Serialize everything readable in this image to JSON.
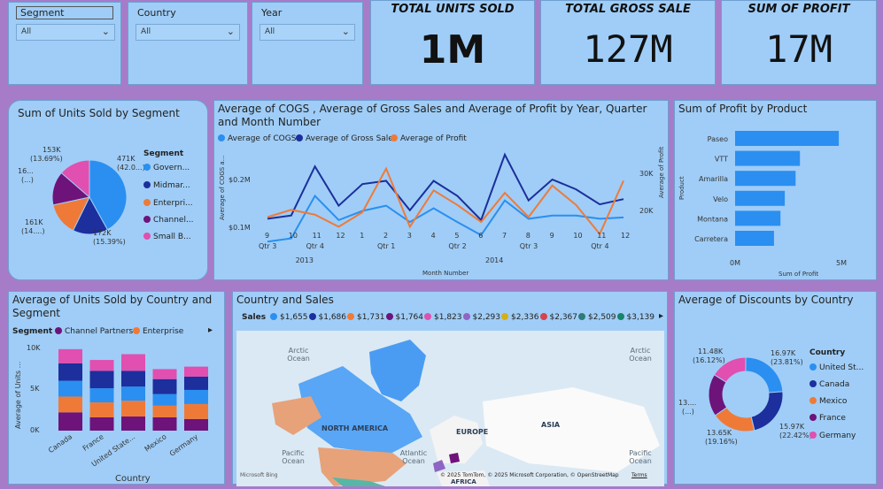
{
  "slicers": [
    {
      "label": "Segment",
      "value": "All"
    },
    {
      "label": "Country",
      "value": "All"
    },
    {
      "label": "Year",
      "value": "All"
    }
  ],
  "kpis": [
    {
      "title": "TOTAL UNITS SOLD",
      "value": "1M"
    },
    {
      "title": "TOTAL GROSS SALE",
      "value": "127M"
    },
    {
      "title": "SUM OF PROFIT",
      "value": "17M"
    }
  ],
  "colors": {
    "blue": "#2a8ff0",
    "navy": "#1c2f9c",
    "orange": "#ef7a38",
    "purple": "#6d137a",
    "pink": "#e14fb0",
    "mauve": "#a67cc9"
  },
  "pie_segment": {
    "title": "Sum of Units Sold by Segment",
    "legend_title": "Segment",
    "legend": [
      "Govern...",
      "Midmar...",
      "Enterpri...",
      "Channel...",
      "Small B..."
    ],
    "labels": [
      {
        "v": "471K",
        "p": "(42.0...)"
      },
      {
        "v": "172K",
        "p": "(15.39%)"
      },
      {
        "v": "161K",
        "p": "(14....)"
      },
      {
        "v": "16...",
        "p": "(...)"
      },
      {
        "v": "153K",
        "p": "(13.69%)"
      }
    ]
  },
  "line_chart": {
    "title": "Average of COGS , Average of Gross Sales and Average of Profit by Year, Quarter and Month Number",
    "legend": [
      "Average of COGS",
      "Average of Gross Sales",
      "Average of Profit"
    ],
    "y_left_label": "Average of COGS a...",
    "y_right_label": "Average of Profit",
    "y_left_ticks": [
      "$0.2M",
      "$0.1M"
    ],
    "y_right_ticks": [
      "30K",
      "20K"
    ],
    "months": [
      "9",
      "10",
      "11",
      "12",
      "1",
      "2",
      "3",
      "4",
      "5",
      "6",
      "7",
      "8",
      "9",
      "10",
      "11",
      "12"
    ],
    "quarters": [
      "Qtr 3",
      "Qtr 4",
      "Qtr 1",
      "Qtr 2",
      "Qtr 3",
      "Qtr 4"
    ],
    "years": [
      "2013",
      "2014"
    ],
    "xlabel": "Month Number"
  },
  "bar_product": {
    "title": "Sum of Profit by Product",
    "ylabel": "Product",
    "xlabel": "Sum of Profit",
    "xticks": [
      "0M",
      "5M"
    ],
    "categories": [
      "Paseo",
      "VTT",
      "Amarilla",
      "Velo",
      "Montana",
      "Carretera"
    ]
  },
  "stacked_country": {
    "title": "Average of Units Sold by Country and Segment",
    "legend_title": "Segment",
    "legend": [
      "Channel Partners",
      "Enterprise"
    ],
    "ylabel": "Average of Units ...",
    "yticks": [
      "10K",
      "5K",
      "0K"
    ],
    "categories": [
      "Canada",
      "France",
      "United States of America",
      "Mexico",
      "Germany"
    ],
    "cat_labels": [
      "Canada",
      "France",
      "United State...",
      "Mexico",
      "Germany"
    ],
    "xlabel": "Country"
  },
  "map": {
    "title": "Country and Sales",
    "legend_title": "Sales",
    "legend": [
      "$1,655",
      "$1,686",
      "$1,731",
      "$1,764",
      "$1,823",
      "$2,293",
      "$2,336",
      "$2,367",
      "$2,509",
      "$3,139"
    ],
    "labels": {
      "arctic1": "Arctic Ocean",
      "arctic2": "Arctic Ocean",
      "pacific1": "Pacific Ocean",
      "pacific2": "Pacific Ocean",
      "atlantic": "Atlantic Ocean",
      "na": "NORTH AMERICA",
      "eu": "EUROPE",
      "asia": "ASIA",
      "africa": "AFRICA"
    },
    "attribution": "© 2025 TomTom, © 2025 Microsoft Corporation, © OpenStreetMap",
    "terms": "Terms",
    "bing": "Microsoft Bing"
  },
  "donut": {
    "title": "Average of Discounts by Country",
    "legend_title": "Country",
    "legend": [
      "United St...",
      "Canada",
      "Mexico",
      "France",
      "Germany"
    ],
    "labels": [
      {
        "v": "16.97K",
        "p": "(23.81%)"
      },
      {
        "v": "15.97K",
        "p": "(22.42%)"
      },
      {
        "v": "13.65K",
        "p": "(19.16%)"
      },
      {
        "v": "13....",
        "p": "(...)"
      },
      {
        "v": "11.48K",
        "p": "(16.12%)"
      }
    ]
  },
  "chart_data": [
    {
      "type": "pie",
      "title": "Sum of Units Sold by Segment",
      "categories": [
        "Government",
        "Midmarket",
        "Enterprise",
        "Channel Partners",
        "Small Business"
      ],
      "values": [
        471,
        172,
        161,
        166,
        153
      ],
      "unit": "K"
    },
    {
      "type": "line",
      "title": "Average of COGS , Average of Gross Sales and Average of Profit by Year, Quarter and Month Number",
      "x": [
        "2013 Qtr3 9",
        "10",
        "11",
        "12",
        "2014 Qtr1 1",
        "2",
        "3",
        "4",
        "5",
        "6",
        "7",
        "8",
        "9",
        "10",
        "11",
        "12"
      ],
      "series": [
        {
          "name": "Average of COGS",
          "axis": "left",
          "values": [
            0.105,
            0.11,
            0.175,
            0.138,
            0.152,
            0.16,
            0.135,
            0.156,
            0.135,
            0.115,
            0.168,
            0.14,
            0.145,
            0.145,
            0.14,
            0.142
          ]
        },
        {
          "name": "Average of Gross Sales",
          "axis": "left",
          "values": [
            0.14,
            0.145,
            0.22,
            0.16,
            0.193,
            0.198,
            0.153,
            0.198,
            0.175,
            0.138,
            0.238,
            0.168,
            0.2,
            0.185,
            0.162,
            0.17
          ]
        },
        {
          "name": "Average of Profit",
          "axis": "right",
          "values": [
            22500,
            24000,
            23000,
            20500,
            23500,
            32500,
            20500,
            28000,
            25000,
            21500,
            27500,
            22500,
            29000,
            25000,
            19000,
            30000
          ]
        }
      ]
    },
    {
      "type": "bar",
      "title": "Sum of Profit by Product",
      "categories": [
        "Paseo",
        "VTT",
        "Amarilla",
        "Velo",
        "Montana",
        "Carretera"
      ],
      "values": [
        4.8,
        3.0,
        2.8,
        2.3,
        2.1,
        1.8
      ],
      "unit": "M",
      "xlim": [
        0,
        5
      ]
    },
    {
      "type": "bar",
      "title": "Average of Units Sold by Country and Segment",
      "stacked": true,
      "categories": [
        "Canada",
        "France",
        "United States of America",
        "Mexico",
        "Germany"
      ],
      "series": [
        {
          "name": "Channel Partners",
          "values": [
            2.2,
            1.6,
            1.7,
            1.6,
            1.4
          ]
        },
        {
          "name": "Enterprise",
          "values": [
            1.9,
            1.8,
            1.9,
            1.4,
            1.8
          ]
        },
        {
          "name": "Government",
          "values": [
            1.9,
            1.7,
            1.7,
            1.4,
            1.7
          ]
        },
        {
          "name": "Midmarket",
          "values": [
            2.1,
            2.1,
            1.9,
            1.8,
            1.6
          ]
        },
        {
          "name": "Small Business",
          "values": [
            1.7,
            1.3,
            2.0,
            1.2,
            1.2
          ]
        }
      ],
      "ylim": [
        0,
        10
      ]
    },
    {
      "type": "pie",
      "title": "Average of Discounts by Country",
      "donut": true,
      "categories": [
        "United States of America",
        "Canada",
        "Mexico",
        "France",
        "Germany"
      ],
      "values": [
        16.97,
        15.97,
        13.65,
        13.2,
        11.48
      ],
      "unit": "K"
    }
  ]
}
